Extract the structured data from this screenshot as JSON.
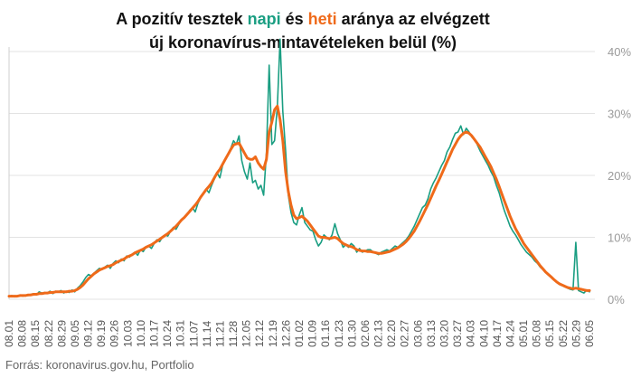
{
  "chart_data": {
    "type": "line",
    "title_parts": [
      "A pozitív tesztek ",
      "napi",
      " és ",
      "heti",
      " aránya az elvégzett",
      "új koronavírus-mintavételeken belül (%)"
    ],
    "source": "Forrás: koronavirus.gov.hu, Portfolio",
    "y_ticks": [
      "0%",
      "10%",
      "20%",
      "30%",
      "40%"
    ],
    "ylim": [
      0,
      40
    ],
    "x_labels": [
      "08.01",
      "08.08",
      "08.15",
      "08.22",
      "08.29",
      "09.05",
      "09.12",
      "09.19",
      "09.26",
      "10.03",
      "10.10",
      "10.17",
      "10.24",
      "10.31",
      "11.07",
      "11.14",
      "11.21",
      "11.28",
      "12.05",
      "12.12",
      "12.19",
      "12.26",
      "01.02",
      "01.09",
      "01.16",
      "01.23",
      "01.30",
      "02.06",
      "02.13",
      "02.20",
      "02.27",
      "03.06",
      "03.13",
      "03.20",
      "03.27",
      "04.03",
      "04.10",
      "04.17",
      "04.24",
      "05.01",
      "05.08",
      "05.15",
      "05.22",
      "05.29",
      "06.05"
    ],
    "colors": {
      "napi": "#1a9e82",
      "heti": "#ef6a1a",
      "grid": "#e3e3e3"
    },
    "series": [
      {
        "name": "napi",
        "x_start": 0,
        "values": [
          0.5,
          0.6,
          0.4,
          0.5,
          0.7,
          0.5,
          0.6,
          0.6,
          0.8,
          0.9,
          0.7,
          1.2,
          1.0,
          1.1,
          1.0,
          1.3,
          0.9,
          1.3,
          1.2,
          1.4,
          1.0,
          1.3,
          1.1,
          1.5,
          1.2,
          1.8,
          2.2,
          2.8,
          3.5,
          4.0,
          3.8,
          4.2,
          4.6,
          5.0,
          4.8,
          5.2,
          5.5,
          5.0,
          5.8,
          6.2,
          5.9,
          6.5,
          6.2,
          7.0,
          6.8,
          7.3,
          7.6,
          7.1,
          8.0,
          7.7,
          8.4,
          8.6,
          8.2,
          9.0,
          9.6,
          9.3,
          10.0,
          10.4,
          10.2,
          11.0,
          11.6,
          11.3,
          12.1,
          12.8,
          13.2,
          13.6,
          14.4,
          14.8,
          14.1,
          15.5,
          16.4,
          17.0,
          17.8,
          17.2,
          18.4,
          19.4,
          20.4,
          19.6,
          21.6,
          22.6,
          23.4,
          24.4,
          25.6,
          25.0,
          26.4,
          22.4,
          20.6,
          19.4,
          22.0,
          18.8,
          19.2,
          17.8,
          18.4,
          16.8,
          23.6,
          37.8,
          25.0,
          25.6,
          31.2,
          42.0,
          30.4,
          24.0,
          16.8,
          14.0,
          12.4,
          12.0,
          13.6,
          14.8,
          12.4,
          11.8,
          11.2,
          11.0,
          9.6,
          8.6,
          9.2,
          10.4,
          10.0,
          9.6,
          10.4,
          12.2,
          10.6,
          9.6,
          8.4,
          8.8,
          8.4,
          9.0,
          8.6,
          7.6,
          8.2,
          7.6,
          7.8,
          8.0,
          8.0,
          7.6,
          7.4,
          7.2,
          7.6,
          7.8,
          8.0,
          7.8,
          8.2,
          8.6,
          8.4,
          8.8,
          9.2,
          9.6,
          10.2,
          11.0,
          11.8,
          12.8,
          13.8,
          14.8,
          15.2,
          16.2,
          17.8,
          18.8,
          19.6,
          20.6,
          21.6,
          22.4,
          23.8,
          24.6,
          25.8,
          26.8,
          27.0,
          28.0,
          26.6,
          27.6,
          27.0,
          26.2,
          25.8,
          25.0,
          24.0,
          23.2,
          22.4,
          21.6,
          20.6,
          19.8,
          18.4,
          17.2,
          15.6,
          14.2,
          13.0,
          11.8,
          11.0,
          10.4,
          9.6,
          8.8,
          8.2,
          7.6,
          7.2,
          6.8,
          6.2,
          5.8,
          5.2,
          4.8,
          4.4,
          4.0,
          3.6,
          3.2,
          2.8,
          2.4,
          2.2,
          2.0,
          1.8,
          1.6,
          1.5,
          9.2,
          1.4,
          1.2,
          1.0,
          1.5,
          1.2
        ]
      },
      {
        "name": "heti",
        "x_start": 0,
        "values": [
          0.5,
          0.5,
          0.5,
          0.5,
          0.6,
          0.6,
          0.6,
          0.7,
          0.7,
          0.8,
          0.8,
          0.9,
          0.9,
          1.0,
          1.0,
          1.1,
          1.1,
          1.2,
          1.2,
          1.2,
          1.2,
          1.2,
          1.3,
          1.3,
          1.4,
          1.6,
          1.9,
          2.3,
          2.8,
          3.3,
          3.7,
          4.1,
          4.4,
          4.7,
          4.9,
          5.1,
          5.3,
          5.4,
          5.6,
          5.9,
          6.1,
          6.3,
          6.5,
          6.8,
          7.0,
          7.2,
          7.5,
          7.7,
          7.9,
          8.1,
          8.4,
          8.6,
          8.8,
          9.1,
          9.4,
          9.7,
          10.0,
          10.3,
          10.6,
          11.0,
          11.4,
          11.8,
          12.3,
          12.8,
          13.2,
          13.7,
          14.2,
          14.7,
          15.2,
          15.8,
          16.5,
          17.1,
          17.7,
          18.2,
          18.8,
          19.6,
          20.4,
          21.0,
          21.8,
          22.6,
          23.4,
          24.2,
          24.9,
          25.1,
          25.2,
          24.4,
          23.6,
          22.8,
          22.6,
          22.6,
          23.0,
          22.0,
          21.4,
          21.0,
          22.6,
          27.0,
          28.6,
          30.6,
          31.2,
          29.0,
          25.6,
          20.6,
          17.4,
          15.2,
          13.6,
          13.0,
          13.2,
          13.4,
          13.0,
          12.6,
          12.0,
          11.4,
          10.8,
          10.2,
          10.0,
          10.0,
          9.9,
          9.8,
          9.9,
          10.0,
          9.8,
          9.4,
          9.0,
          8.8,
          8.6,
          8.5,
          8.3,
          8.0,
          7.9,
          7.8,
          7.8,
          7.7,
          7.7,
          7.6,
          7.5,
          7.4,
          7.4,
          7.5,
          7.6,
          7.7,
          7.9,
          8.1,
          8.3,
          8.6,
          8.9,
          9.3,
          9.8,
          10.4,
          11.0,
          11.8,
          12.6,
          13.5,
          14.4,
          15.3,
          16.3,
          17.3,
          18.3,
          19.2,
          20.2,
          21.2,
          22.2,
          23.2,
          24.2,
          25.0,
          25.8,
          26.4,
          26.8,
          27.0,
          26.8,
          26.4,
          25.8,
          25.2,
          24.6,
          23.8,
          23.0,
          22.2,
          21.4,
          20.4,
          19.4,
          18.2,
          17.0,
          15.8,
          14.6,
          13.4,
          12.4,
          11.4,
          10.6,
          9.8,
          9.0,
          8.4,
          7.8,
          7.2,
          6.6,
          6.0,
          5.4,
          4.9,
          4.4,
          4.0,
          3.6,
          3.2,
          2.8,
          2.5,
          2.3,
          2.1,
          1.9,
          1.8,
          1.7,
          1.8,
          1.7,
          1.6,
          1.5,
          1.4,
          1.4
        ]
      }
    ]
  }
}
